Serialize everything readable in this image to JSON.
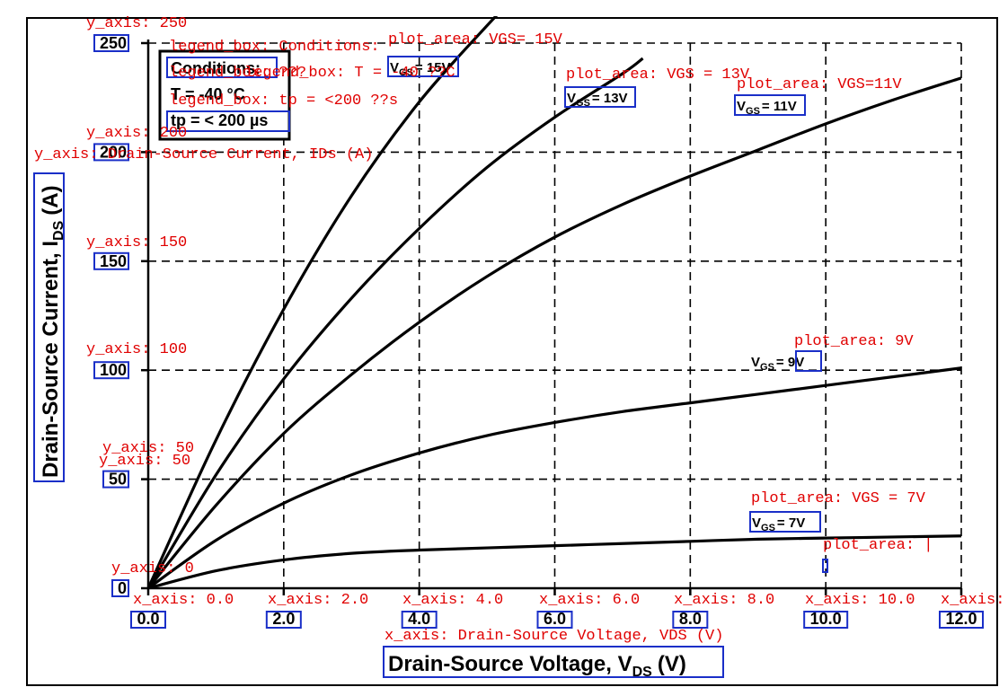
{
  "chart_data": {
    "type": "line",
    "xlabel": "Drain-Source Voltage, V",
    "xlabel_sub": "DS",
    "xlabel_unit": "(V)",
    "ylabel": "Drain-Source Current, I",
    "ylabel_sub": "DS",
    "ylabel_unit": "(A)",
    "xlim": [
      0,
      12
    ],
    "ylim": [
      0,
      250
    ],
    "x_ticks": [
      "0.0",
      "2.0",
      "4.0",
      "6.0",
      "8.0",
      "10.0",
      "12.0"
    ],
    "y_ticks": [
      "0",
      "50",
      "100",
      "150",
      "200",
      "250"
    ],
    "grid": true,
    "legend": {
      "placement": "top-left",
      "title": "Conditions:",
      "lines": [
        "T = -40 °C",
        "tp = < 200 µs"
      ]
    },
    "series": [
      {
        "name": "VGS = 15V",
        "label_prefix": "V",
        "label_sub": "GS",
        "label_value": "= 15V",
        "x": [
          0,
          1,
          2,
          3,
          4,
          5,
          5.5
        ],
        "y": [
          0,
          68,
          128,
          180,
          223,
          258,
          274
        ]
      },
      {
        "name": "VGS = 13V",
        "label_prefix": "V",
        "label_sub": "GS",
        "label_value": "= 13V",
        "x": [
          0,
          1,
          2,
          3,
          4,
          5,
          6,
          7,
          7.3
        ],
        "y": [
          0,
          52,
          96,
          133,
          165,
          193,
          216,
          236,
          243
        ]
      },
      {
        "name": "VGS = 11V",
        "label_prefix": "V",
        "label_sub": "GS",
        "label_value": "= 11V",
        "x": [
          0,
          1,
          2,
          3,
          4,
          5,
          6,
          7,
          8,
          9,
          10,
          11,
          12
        ],
        "y": [
          0,
          38,
          71,
          98,
          122,
          143,
          161,
          176,
          189,
          201,
          213,
          224,
          234
        ]
      },
      {
        "name": "VGS = 9V",
        "label_prefix": "V",
        "label_sub": "GS",
        "label_value": "= 9V",
        "x": [
          0,
          1,
          2,
          3,
          4,
          5,
          6,
          7,
          8,
          9,
          10,
          11,
          12
        ],
        "y": [
          0,
          22,
          39,
          52,
          62,
          70,
          76,
          81,
          85,
          89,
          93,
          97,
          101
        ]
      },
      {
        "name": "VGS = 7V",
        "label_prefix": "V",
        "label_sub": "GS",
        "label_value": "= 7V",
        "x": [
          0,
          1,
          2,
          3,
          4,
          5,
          6,
          7,
          8,
          9,
          10,
          11,
          12
        ],
        "y": [
          0,
          8,
          13,
          16,
          17.5,
          18.5,
          19.5,
          20.5,
          21.5,
          22.5,
          23,
          23.5,
          24
        ]
      }
    ],
    "annotations": {
      "y_ticks": [
        "y_axis: 0",
        "y_axis: 50",
        "y_axis: 100",
        "y_axis: 150",
        "y_axis: 200",
        "y_axis: 250"
      ],
      "y_ticks_extra": [
        "y_axis: 50"
      ],
      "x_ticks": [
        "x_axis: 0.0",
        "x_axis: 2.0",
        "x_axis: 4.0",
        "x_axis: 6.0",
        "x_axis: 8.0",
        "x_axis: 10.0",
        "x_axis:"
      ],
      "y_title": "y_axis: Drain-Source Current, IDs (A)",
      "x_title": "x_axis: Drain-Source Voltage, VDS (V)",
      "legend_title": "legend_box: Conditions:",
      "legend_temp": "legend_box: T = -40 ??C",
      "legend_temp_overlap": "legend_box: ???",
      "legend_tp": "legend_box: tp = <200 ??s",
      "series": [
        "plot_area: VGS= 15V",
        "plot_area: VGS = 13V",
        "plot_area: VGS=11V",
        "plot_area: 9V",
        "plot_area: VGS = 7V"
      ],
      "extra_plot": "plot_area: |"
    }
  }
}
